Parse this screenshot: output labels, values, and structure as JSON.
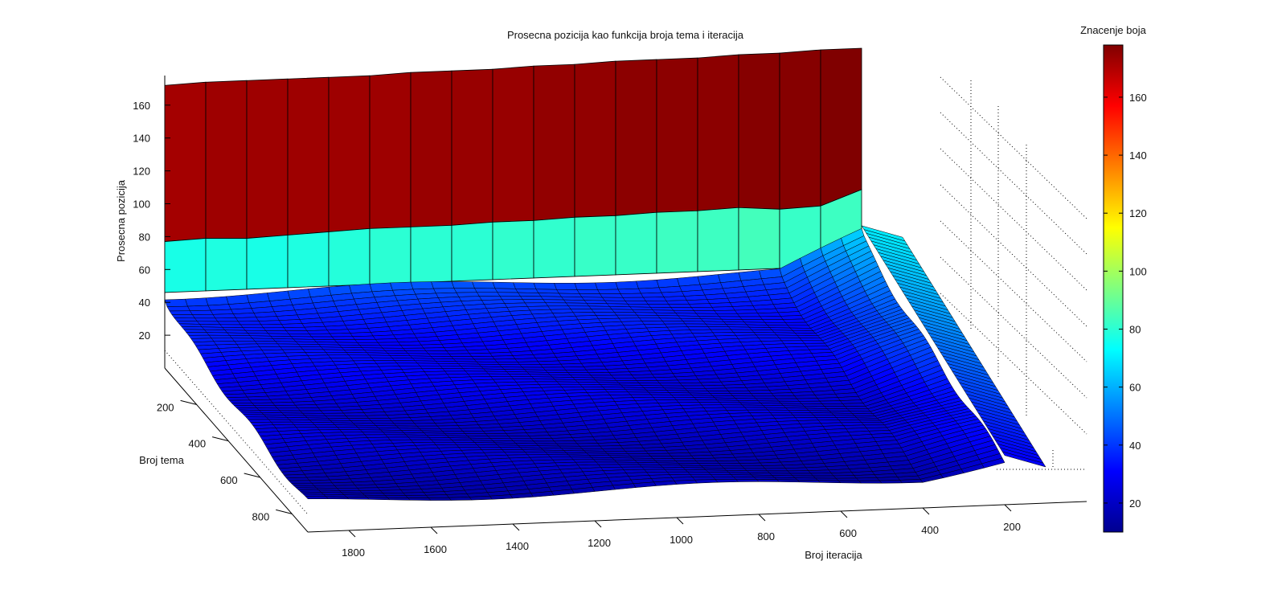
{
  "chart_data": {
    "type": "surface",
    "title": "Prosecna pozicija kao funkcija broja tema i iteracija",
    "xlabel": "Broj iteracija",
    "ylabel": "Broj tema",
    "zlabel": "Prosecna pozicija",
    "colorbar_title": "Znacenje boja",
    "colormap": "jet",
    "x_ticks": [
      1800,
      1600,
      1400,
      1200,
      1000,
      800,
      600,
      400,
      200
    ],
    "y_ticks": [
      200,
      400,
      600,
      800
    ],
    "z_ticks": [
      20,
      40,
      60,
      80,
      100,
      120,
      140,
      160
    ],
    "colorbar_ticks": [
      20,
      40,
      60,
      80,
      100,
      120,
      140,
      160
    ],
    "colorbar_range": [
      10,
      178
    ],
    "xlim": [
      0,
      1900
    ],
    "ylim": [
      0,
      900
    ],
    "zlim": [
      0,
      178
    ],
    "iterations": [
      1900,
      1800,
      1700,
      1600,
      1500,
      1400,
      1300,
      1200,
      1100,
      1000,
      900,
      800,
      700,
      600,
      500,
      400,
      300,
      200
    ],
    "topics_first_row": 1,
    "topics_second_row": 10,
    "avg_position_topics_1": [
      172,
      173,
      173,
      173,
      173,
      173,
      174,
      174,
      174,
      175,
      175,
      176,
      176,
      176,
      177,
      177,
      178,
      178
    ],
    "avg_position_topics_10": [
      77,
      78,
      77,
      78,
      79,
      80,
      80,
      80,
      81,
      81,
      82,
      82,
      83,
      83,
      84,
      82,
      83,
      92
    ],
    "avg_position_topics_50_to_900": "approximately 20-45, decreasing with more topics",
    "note_low_iterations": "values rise to about 60-80 for the smallest iteration counts"
  }
}
